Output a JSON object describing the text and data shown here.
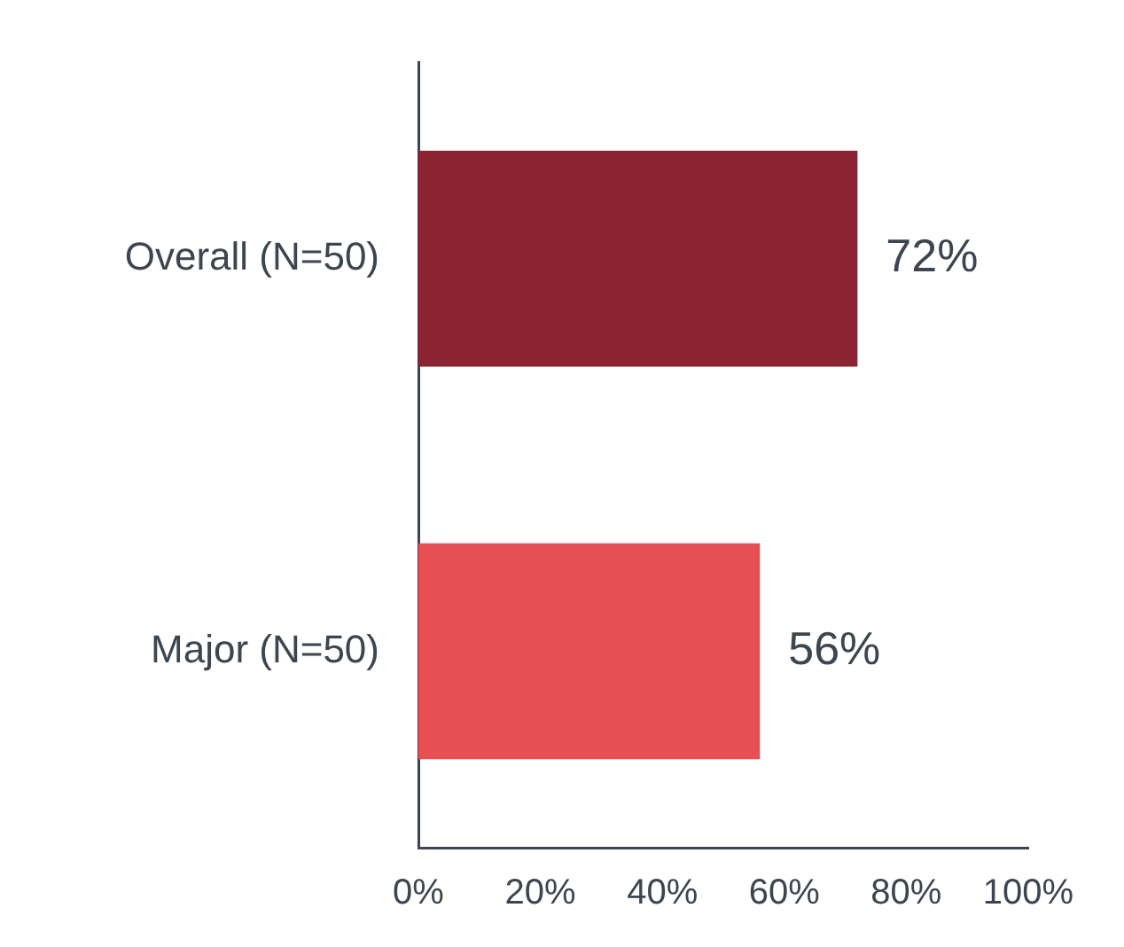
{
  "chart_data": {
    "type": "bar",
    "orientation": "horizontal",
    "categories": [
      "Overall (N=50)",
      "Major (N=50)"
    ],
    "values": [
      72,
      56
    ],
    "colors": [
      "#8b2332",
      "#e84f55"
    ],
    "xlim": [
      0,
      100
    ],
    "xticks": [
      {
        "value": 0,
        "label": "0%"
      },
      {
        "value": 20,
        "label": "20%"
      },
      {
        "value": 40,
        "label": "40%"
      },
      {
        "value": 60,
        "label": "60%"
      },
      {
        "value": 80,
        "label": "80%"
      },
      {
        "value": 100,
        "label": "100%"
      }
    ],
    "value_labels": [
      "72%",
      "56%"
    ],
    "grid": false,
    "legend": false
  }
}
